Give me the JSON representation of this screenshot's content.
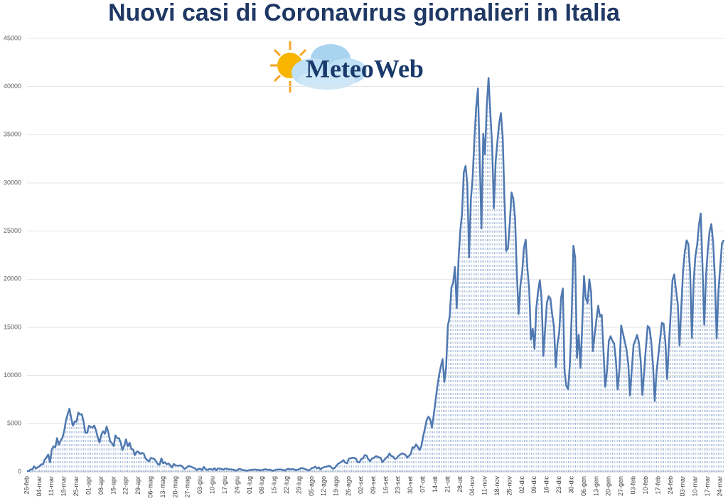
{
  "chart_data": {
    "type": "line",
    "title": "Nuovi casi di Coronavirus giornalieri in Italia",
    "logo": "MeteoWeb",
    "color": "#4f78b0",
    "fill_color": "#8aa6cf",
    "grid": true,
    "ylim": [
      0,
      45000
    ],
    "yticks": [
      0,
      5000,
      10000,
      15000,
      20000,
      25000,
      30000,
      35000,
      40000,
      45000
    ],
    "categories": [
      "26-feb",
      null,
      null,
      null,
      null,
      null,
      null,
      "04-mar",
      null,
      null,
      null,
      null,
      null,
      null,
      "11-mar",
      null,
      null,
      null,
      null,
      null,
      null,
      "18-mar",
      null,
      null,
      null,
      null,
      null,
      null,
      "25-mar",
      null,
      null,
      null,
      null,
      null,
      null,
      "01-apr",
      null,
      null,
      null,
      null,
      null,
      null,
      "08-apr",
      null,
      null,
      null,
      null,
      null,
      null,
      "15-apr",
      null,
      null,
      null,
      null,
      null,
      null,
      "22-apr",
      null,
      null,
      null,
      null,
      null,
      null,
      "29-apr",
      null,
      null,
      null,
      null,
      null,
      null,
      "06-mag",
      null,
      null,
      null,
      null,
      null,
      null,
      "13-mag",
      null,
      null,
      null,
      null,
      null,
      null,
      "20-mag",
      null,
      null,
      null,
      null,
      null,
      null,
      "27-mag",
      null,
      null,
      null,
      null,
      null,
      null,
      "03-giu",
      null,
      null,
      null,
      null,
      null,
      null,
      "10-giu",
      null,
      null,
      null,
      null,
      null,
      null,
      "17-giu",
      null,
      null,
      null,
      null,
      null,
      null,
      "24-giu",
      null,
      null,
      null,
      null,
      null,
      null,
      "01-lug",
      null,
      null,
      null,
      null,
      null,
      null,
      "08-lug",
      null,
      null,
      null,
      null,
      null,
      null,
      "15-lug",
      null,
      null,
      null,
      null,
      null,
      null,
      "22-lug",
      null,
      null,
      null,
      null,
      null,
      null,
      "29-lug",
      null,
      null,
      null,
      null,
      null,
      null,
      "05-ago",
      null,
      null,
      null,
      null,
      null,
      null,
      "12-ago",
      null,
      null,
      null,
      null,
      null,
      null,
      "19-ago",
      null,
      null,
      null,
      null,
      null,
      null,
      "26-ago",
      null,
      null,
      null,
      null,
      null,
      null,
      "02-set",
      null,
      null,
      null,
      null,
      null,
      null,
      "09-set",
      null,
      null,
      null,
      null,
      null,
      null,
      "16-set",
      null,
      null,
      null,
      null,
      null,
      null,
      "23-set",
      null,
      null,
      null,
      null,
      null,
      null,
      "30-set",
      null,
      null,
      null,
      null,
      null,
      null,
      "07-ott",
      null,
      null,
      null,
      null,
      null,
      null,
      "14-ott",
      null,
      null,
      null,
      null,
      null,
      null,
      "21-ott",
      null,
      null,
      null,
      null,
      null,
      null,
      "28-ott",
      null,
      null,
      null,
      null,
      null,
      null,
      "04-nov",
      null,
      null,
      null,
      null,
      null,
      null,
      "11-nov",
      null,
      null,
      null,
      null,
      null,
      null,
      "18-nov",
      null,
      null,
      null,
      null,
      null,
      null,
      "25-nov",
      null,
      null,
      null,
      null,
      null,
      null,
      "02-dic",
      null,
      null,
      null,
      null,
      null,
      null,
      "09-dic",
      null,
      null,
      null,
      null,
      null,
      null,
      "16-dic",
      null,
      null,
      null,
      null,
      null,
      null,
      "23-dic",
      null,
      null,
      null,
      null,
      null,
      null,
      "30-dic",
      null,
      null,
      null,
      null,
      null,
      null,
      "06-gen",
      null,
      null,
      null,
      null,
      null,
      null,
      "13-gen",
      null,
      null,
      null,
      null,
      null,
      null,
      "20-gen",
      null,
      null,
      null,
      null,
      null,
      null,
      "27-gen",
      null,
      null,
      null,
      null,
      null,
      null,
      "03-feb",
      null,
      null,
      null,
      null,
      null,
      null,
      "10-feb",
      null,
      null,
      null,
      null,
      null,
      null,
      "17-feb",
      null,
      null,
      null,
      null,
      null,
      null,
      "24-feb",
      null,
      null,
      null,
      null,
      null,
      null,
      "03-mar",
      null,
      null,
      null,
      null,
      null,
      null,
      "10-mar",
      null,
      null,
      null,
      null,
      null,
      null,
      "17-mar",
      null,
      null,
      null,
      null,
      null,
      null,
      "24-mar",
      null,
      null
    ],
    "values": [
      93,
      78,
      250,
      238,
      573,
      335,
      466,
      587,
      769,
      778,
      1247,
      1492,
      1797,
      977,
      2313,
      2651,
      2547,
      3497,
      2823,
      3233,
      3526,
      4207,
      5322,
      5986,
      6557,
      5560,
      4789,
      5249,
      5210,
      6153,
      5959,
      5974,
      5217,
      4050,
      4053,
      4782,
      4668,
      4585,
      4805,
      4316,
      3599,
      3039,
      3836,
      4204,
      3951,
      4694,
      4092,
      3153,
      2972,
      2667,
      3786,
      3493,
      3491,
      3047,
      2256,
      2729,
      3370,
      2646,
      3021,
      2357,
      2324,
      1739,
      2091,
      2086,
      1872,
      1965,
      1900,
      1389,
      1221,
      1075,
      1444,
      1401,
      1327,
      1083,
      802,
      744,
      1402,
      888,
      992,
      789,
      875,
      675,
      451,
      813,
      665,
      642,
      652,
      669,
      531,
      300,
      397,
      584,
      593,
      516,
      416,
      355,
      178,
      318,
      321,
      177,
      518,
      270,
      197,
      280,
      283,
      202,
      379,
      163,
      346,
      338,
      301,
      210,
      329,
      333,
      251,
      262,
      224,
      218,
      122,
      190,
      296,
      259,
      175,
      174,
      126,
      142,
      182,
      201,
      223,
      235,
      192,
      208,
      138,
      193,
      229,
      276,
      188,
      234,
      169,
      114,
      162,
      230,
      233,
      249,
      219,
      190,
      129,
      282,
      306,
      252,
      275,
      255,
      170,
      212,
      289,
      386,
      379,
      295,
      239,
      159,
      190,
      384,
      402,
      552,
      347,
      463,
      259,
      412,
      481,
      523,
      574,
      629,
      479,
      320,
      403,
      642,
      845,
      947,
      1071,
      1210,
      953,
      878,
      1367,
      1411,
      1462,
      1444,
      1365,
      996,
      978,
      1326,
      1397,
      1733,
      1695,
      1297,
      1108,
      1370,
      1434,
      1597,
      1616,
      1501,
      1458,
      1008,
      1229,
      1452,
      1585,
      1907,
      1638,
      1587,
      1350,
      1392,
      1640,
      1786,
      1912,
      1869,
      1766,
      1494,
      1648,
      1851,
      2548,
      2499,
      2844,
      2578,
      2257,
      2677,
      3678,
      4458,
      5372,
      5724,
      5456,
      4619,
      5901,
      7332,
      8804,
      10010,
      10925,
      11705,
      9338,
      10874,
      15199,
      16079,
      19143,
      19644,
      21273,
      17012,
      21994,
      24991,
      26831,
      31084,
      31758,
      29907,
      22253,
      28244,
      30550,
      34505,
      37809,
      39811,
      32616,
      25271,
      35098,
      32961,
      37978,
      40902,
      37255,
      33979,
      27354,
      32191,
      34283,
      36176,
      37242,
      34767,
      28337,
      22930,
      23232,
      25853,
      29003,
      28352,
      26323,
      20648,
      16377,
      19350,
      20709,
      23225,
      24099,
      21052,
      18887,
      13720,
      14842,
      12756,
      16999,
      18727,
      19903,
      17938,
      12030,
      14844,
      17572,
      18236,
      17992,
      16308,
      15104,
      10872,
      13318,
      14522,
      18040,
      19037,
      10407,
      8913,
      8585,
      11212,
      16202,
      23477,
      22211,
      11831,
      14245,
      10800,
      15378,
      20331,
      18020,
      17533,
      19978,
      18627,
      12532,
      14242,
      15774,
      17246,
      16146,
      16310,
      12545,
      8824,
      10497,
      13571,
      14078,
      13633,
      13331,
      11629,
      8561,
      10593,
      15204,
      14372,
      13574,
      12715,
      11252,
      7925,
      10630,
      13189,
      13659,
      14218,
      13442,
      11641,
      7970,
      10404,
      12956,
      15146,
      14931,
      13532,
      11068,
      7351,
      10386,
      12074,
      13762,
      15479,
      15370,
      13452,
      9630,
      13314,
      16424,
      19886,
      20499,
      18916,
      17455,
      13114,
      17083,
      20884,
      22865,
      24036,
      23641,
      20765,
      13902,
      19749,
      22409,
      23616,
      25673,
      26824,
      21315,
      15267,
      20396,
      23059,
      24935,
      25735,
      23832,
      20159,
      13846,
      18765,
      21267,
      23696,
      24076
    ]
  }
}
